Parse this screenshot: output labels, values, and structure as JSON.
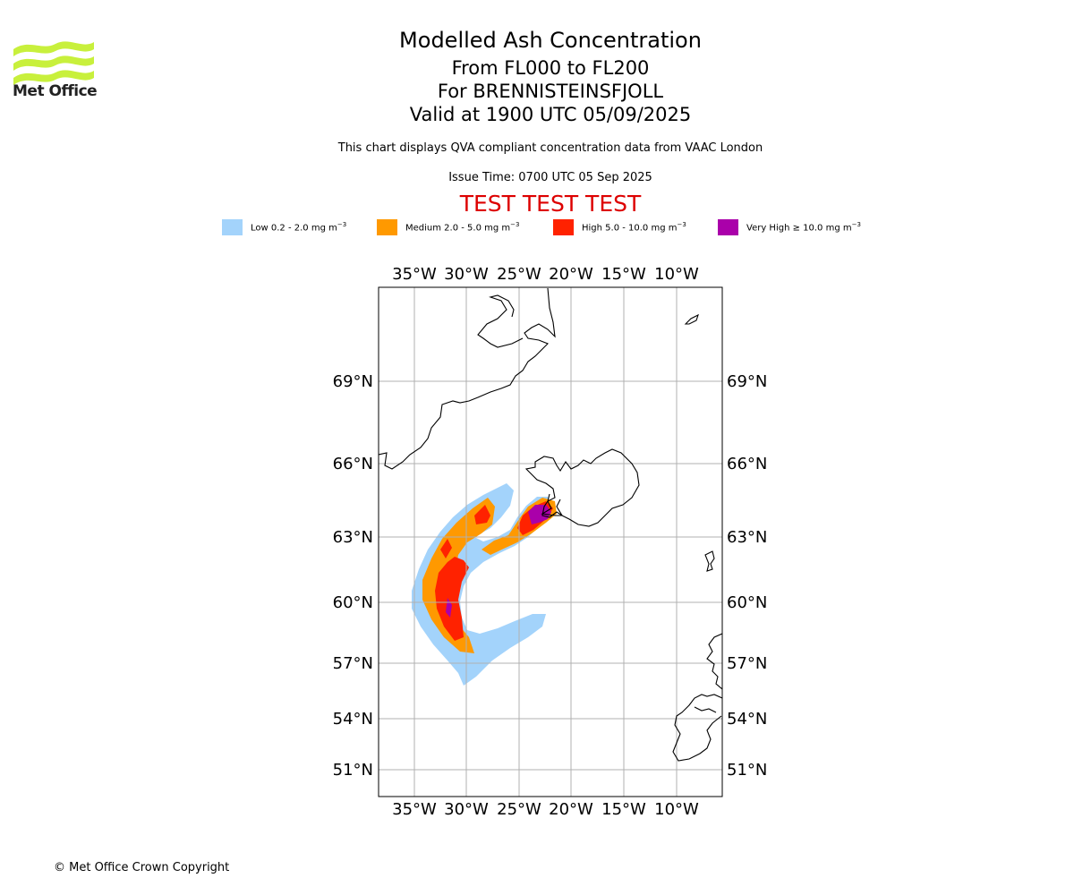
{
  "logo": {
    "text": "Met Office"
  },
  "header": {
    "title": "Modelled Ash Concentration",
    "levels": "From FL000 to FL200",
    "volcano": "For BRENNISTEINSFJOLL",
    "valid": "Valid at 1900 UTC 05/09/2025",
    "subtitle": "This chart displays QVA compliant concentration data from VAAC London",
    "issue_time": "Issue Time: 0700 UTC 05 Sep 2025",
    "test_banner": "TEST TEST TEST"
  },
  "legend": [
    {
      "label": "Low 0.2 - 2.0 mg m",
      "sup": "−3",
      "color": "#a3d3fb"
    },
    {
      "label": "Medium 2.0 - 5.0 mg m",
      "sup": "−3",
      "color": "#ff9900"
    },
    {
      "label": "High 5.0 - 10.0 mg m",
      "sup": "−3",
      "color": "#ff2200"
    },
    {
      "label": "Very High ≥ 10.0 mg m",
      "sup": "−3",
      "color": "#aa00aa"
    }
  ],
  "map": {
    "lon_ticks": [
      "35°W",
      "30°W",
      "25°W",
      "20°W",
      "15°W",
      "10°W"
    ],
    "lat_ticks": [
      "69°N",
      "66°N",
      "63°N",
      "60°N",
      "57°N",
      "54°N",
      "51°N"
    ]
  },
  "footer": {
    "copyright": "© Met Office Crown Copyright"
  }
}
